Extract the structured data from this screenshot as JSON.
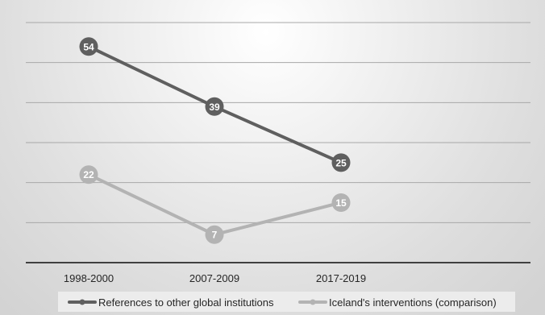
{
  "chart_data": {
    "type": "line",
    "title": "",
    "xlabel": "",
    "ylabel": "",
    "categories": [
      "1998-2000",
      "2007-2009",
      "2017-2019"
    ],
    "ylim": [
      0,
      60
    ],
    "grid": true,
    "legend_position": "bottom",
    "series": [
      {
        "name": "References to other global institutions",
        "values": [
          54,
          39,
          25
        ],
        "color": "#5f5f5f"
      },
      {
        "name": "Iceland's interventions (comparison)",
        "values": [
          22,
          7,
          15
        ],
        "color": "#b3b3b3"
      }
    ]
  }
}
